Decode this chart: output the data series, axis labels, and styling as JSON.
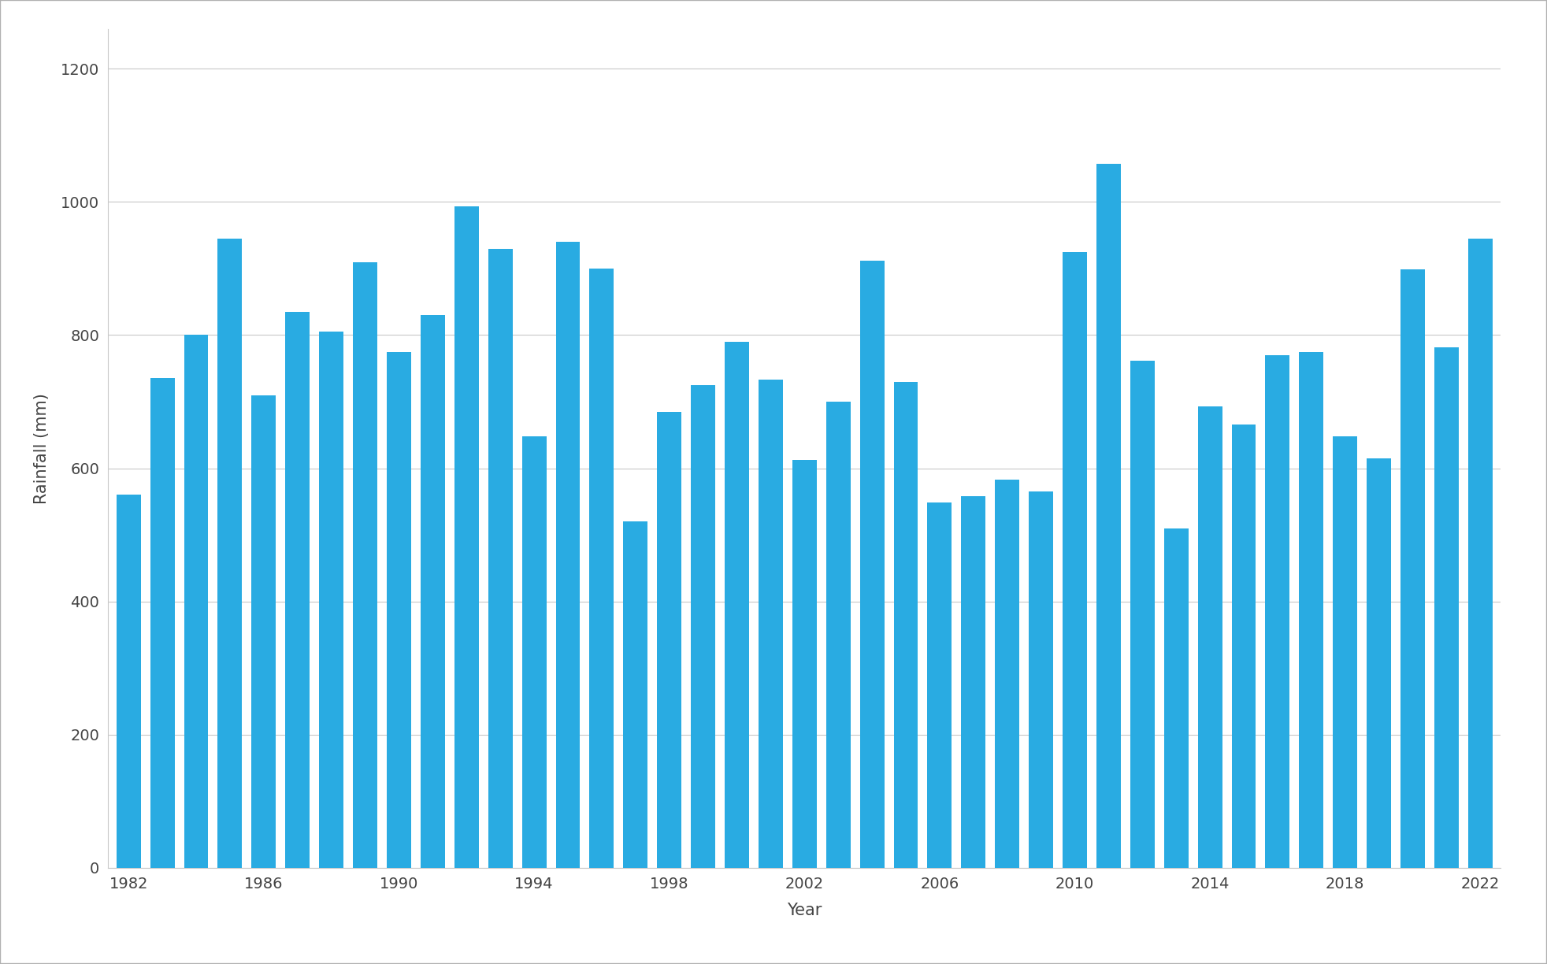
{
  "years": [
    1982,
    1983,
    1984,
    1985,
    1986,
    1987,
    1988,
    1989,
    1990,
    1991,
    1992,
    1993,
    1994,
    1995,
    1996,
    1997,
    1998,
    1999,
    2000,
    2001,
    2002,
    2003,
    2004,
    2005,
    2006,
    2007,
    2008,
    2009,
    2010,
    2011,
    2012,
    2013,
    2014,
    2015,
    2016,
    2017,
    2018,
    2019,
    2020,
    2021,
    2022
  ],
  "values": [
    560,
    735,
    800,
    945,
    710,
    835,
    805,
    910,
    775,
    830,
    993,
    930,
    648,
    940,
    900,
    520,
    685,
    725,
    790,
    733,
    613,
    700,
    912,
    730,
    548,
    558,
    583,
    565,
    925,
    1057,
    762,
    510,
    693,
    666,
    770,
    775,
    648,
    615,
    899,
    782,
    945
  ],
  "bar_color": "#29ABE2",
  "xlabel": "Year",
  "ylabel": "Rainfall (mm)",
  "xlim_left": 1981.4,
  "xlim_right": 2022.6,
  "ylim": [
    0,
    1260
  ],
  "yticks": [
    0,
    200,
    400,
    600,
    800,
    1000,
    1200
  ],
  "xticks": [
    1982,
    1986,
    1990,
    1994,
    1998,
    2002,
    2006,
    2010,
    2014,
    2018,
    2022
  ],
  "grid_color": "#c8c8c8",
  "plot_bg_color": "#ffffff",
  "outer_bg_color": "#ffffff",
  "border_color": "#b0b0b0",
  "bar_width": 0.72,
  "xlabel_fontsize": 15,
  "ylabel_fontsize": 15,
  "tick_fontsize": 14,
  "tick_color": "#444444",
  "label_color": "#444444"
}
